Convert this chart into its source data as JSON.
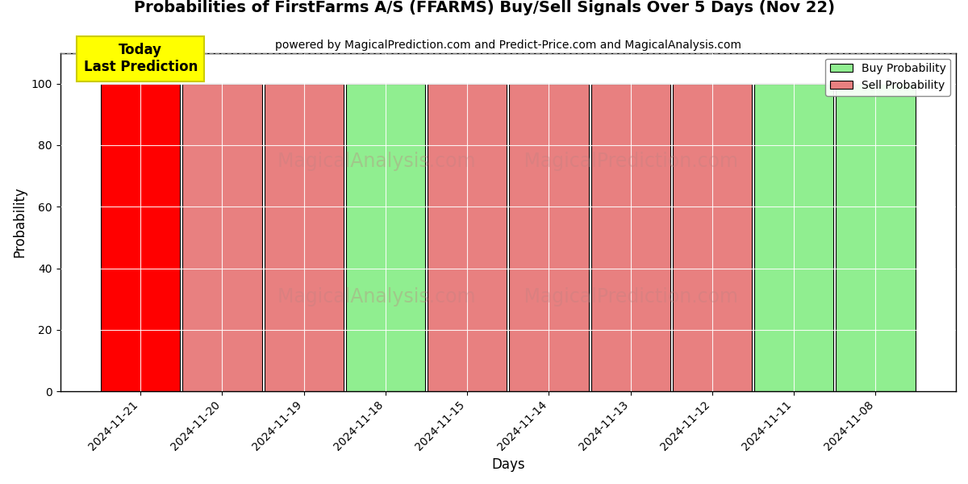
{
  "title": "Probabilities of FirstFarms A/S (FFARMS) Buy/Sell Signals Over 5 Days (Nov 22)",
  "subtitle": "powered by MagicalPrediction.com and Predict-Price.com and MagicalAnalysis.com",
  "xlabel": "Days",
  "ylabel": "Probability",
  "dates": [
    "2024-11-21",
    "2024-11-20",
    "2024-11-19",
    "2024-11-18",
    "2024-11-15",
    "2024-11-14",
    "2024-11-13",
    "2024-11-12",
    "2024-11-11",
    "2024-11-08"
  ],
  "buy_prob": [
    0,
    0,
    0,
    100,
    0,
    0,
    0,
    0,
    100,
    100
  ],
  "sell_prob": [
    100,
    100,
    100,
    0,
    100,
    100,
    100,
    100,
    0,
    0
  ],
  "buy_color": "#90EE90",
  "sell_color_today": "#FF0000",
  "sell_color_normal": "#E88080",
  "today_annotation": "Today\nLast Prediction",
  "ylim": [
    0,
    110
  ],
  "dashed_line_y": 110,
  "bar_width": 0.97,
  "background_color": "#ffffff",
  "wm_row1_text": "MagicalAnalysis.com    MagicalPrediction.com",
  "wm_row2_text": "MagicalAnalysis.com    MagicalPrediction.com"
}
